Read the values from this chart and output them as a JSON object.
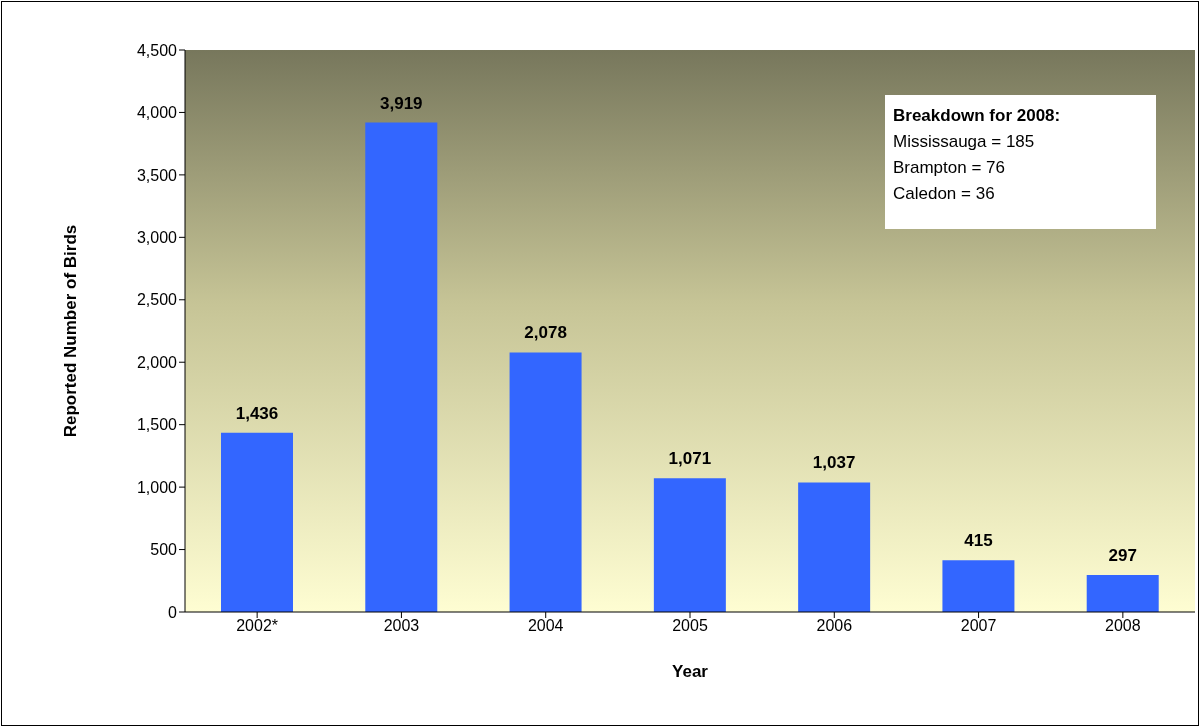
{
  "chart_data": {
    "type": "bar",
    "xlabel": "Year",
    "ylabel": "Reported Number of Birds",
    "categories": [
      "2002*",
      "2003",
      "2004",
      "2005",
      "2006",
      "2007",
      "2008"
    ],
    "values": [
      1436,
      3919,
      2078,
      1071,
      1037,
      415,
      297
    ],
    "value_labels": [
      "1,436",
      "3,919",
      "2,078",
      "1,071",
      "1,037",
      "415",
      "297"
    ],
    "color": "#3366ff",
    "ylim": [
      0,
      4500
    ],
    "yticks": [
      0,
      {
        "value": 500,
        "label": "500"
      },
      {
        "value": 1000,
        "label": "1,000"
      },
      {
        "value": 1500,
        "label": "1,500"
      },
      {
        "value": 2000,
        "label": "2,000"
      },
      {
        "value": 2500,
        "label": "2,500"
      },
      {
        "value": 3000,
        "label": "3,000"
      },
      {
        "value": 3500,
        "label": "3,500"
      },
      {
        "value": 4000,
        "label": "4,000"
      },
      {
        "value": 4500,
        "label": "4,500"
      }
    ],
    "annotations": [
      "Breakdown for 2008:",
      "Mississauga = 185",
      "Brampton = 76",
      "Caledon = 36"
    ]
  }
}
